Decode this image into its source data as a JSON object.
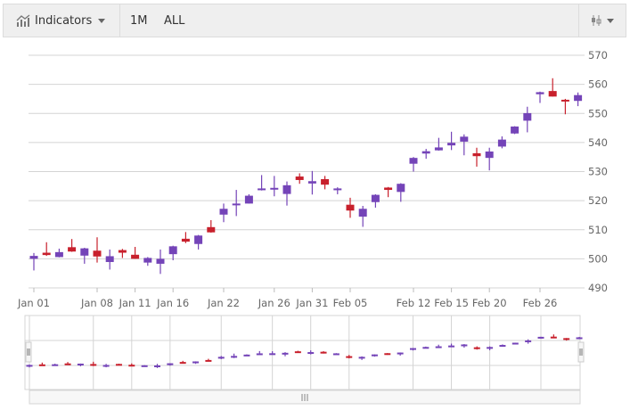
{
  "toolbar": {
    "indicators_label": "Indicators",
    "indicators_icon": "line-chart-icon",
    "range_buttons": [
      "1M",
      "ALL"
    ],
    "settings_icon": "candlestick-settings-icon"
  },
  "colors": {
    "up": "#7444b8",
    "down": "#c8202c",
    "grid": "#d4d4d4"
  },
  "chart_data": {
    "type": "candlestick",
    "yaxis": {
      "position": "right",
      "ticks": [
        490,
        500,
        510,
        520,
        530,
        540,
        550,
        560,
        570
      ],
      "range": [
        490,
        570
      ]
    },
    "xaxis_labels": [
      {
        "index": 0,
        "label": "Jan 01"
      },
      {
        "index": 5,
        "label": "Jan 08"
      },
      {
        "index": 8,
        "label": "Jan 11"
      },
      {
        "index": 11,
        "label": "Jan 16"
      },
      {
        "index": 15,
        "label": "Jan 22"
      },
      {
        "index": 19,
        "label": "Jan 26"
      },
      {
        "index": 22,
        "label": "Jan 31"
      },
      {
        "index": 25,
        "label": "Feb 05"
      },
      {
        "index": 30,
        "label": "Feb 12"
      },
      {
        "index": 33,
        "label": "Feb 15"
      },
      {
        "index": 36,
        "label": "Feb 20"
      },
      {
        "index": 40,
        "label": "Feb 26"
      }
    ],
    "grid": true,
    "navigator": true,
    "ohlc": [
      [
        500,
        502,
        496,
        501
      ],
      [
        502.1,
        505.7,
        501,
        501.3
      ],
      [
        500.6,
        503.5,
        500.5,
        502.3
      ],
      [
        504,
        506.8,
        502.4,
        502.5
      ],
      [
        501.1,
        503.8,
        498.3,
        503.6
      ],
      [
        502.8,
        507.4,
        498.7,
        500.8
      ],
      [
        498.9,
        503.2,
        496.3,
        500.9
      ],
      [
        503,
        503.4,
        500.3,
        502.1
      ],
      [
        501.4,
        504.1,
        500,
        500
      ],
      [
        498.7,
        500.6,
        497.6,
        500.3
      ],
      [
        498.3,
        503.2,
        494.8,
        500
      ],
      [
        501.6,
        504.5,
        499.5,
        504.3
      ],
      [
        506.9,
        509.2,
        505.4,
        505.9
      ],
      [
        505.1,
        508.2,
        503.2,
        508
      ],
      [
        510.9,
        513.3,
        509,
        509.1
      ],
      [
        515.2,
        519,
        512.6,
        517.2
      ],
      [
        518.6,
        523.7,
        514.7,
        519
      ],
      [
        519,
        522.2,
        519,
        521.7
      ],
      [
        523.7,
        528.8,
        523.5,
        524.2
      ],
      [
        524.1,
        528.5,
        521.5,
        524.4
      ],
      [
        522.3,
        526.6,
        518.3,
        525.3
      ],
      [
        528.3,
        529.4,
        525.8,
        527.1
      ],
      [
        525.9,
        530.2,
        522.1,
        526.7
      ],
      [
        527.4,
        528.5,
        523.9,
        525.5
      ],
      [
        523.6,
        524.6,
        522.2,
        524.2
      ],
      [
        518.6,
        521,
        514.1,
        516.6
      ],
      [
        514.5,
        518.2,
        511,
        517.2
      ],
      [
        519.5,
        522.2,
        517.6,
        522
      ],
      [
        524.5,
        524.7,
        521.2,
        523.7
      ],
      [
        523,
        526,
        519.6,
        525.8
      ],
      [
        532.7,
        535,
        530,
        534.7
      ],
      [
        536.2,
        537.8,
        534.4,
        537
      ],
      [
        537.3,
        541.6,
        537.2,
        538.3
      ],
      [
        539,
        543.7,
        537.4,
        539.9
      ],
      [
        540.3,
        542.8,
        535.6,
        542
      ],
      [
        536.3,
        538.2,
        531.7,
        535.3
      ],
      [
        534.7,
        538.2,
        530.4,
        536.9
      ],
      [
        538.6,
        542.1,
        538,
        541
      ],
      [
        543.1,
        545.6,
        542.9,
        545.5
      ],
      [
        547.5,
        552.3,
        543.5,
        550.1
      ],
      [
        556.6,
        557.5,
        553.6,
        557.3
      ],
      [
        557.7,
        562.1,
        555.8,
        555.8
      ],
      [
        554.7,
        555,
        549.7,
        554.2
      ],
      [
        554.3,
        557.2,
        552.5,
        556.3
      ]
    ]
  }
}
